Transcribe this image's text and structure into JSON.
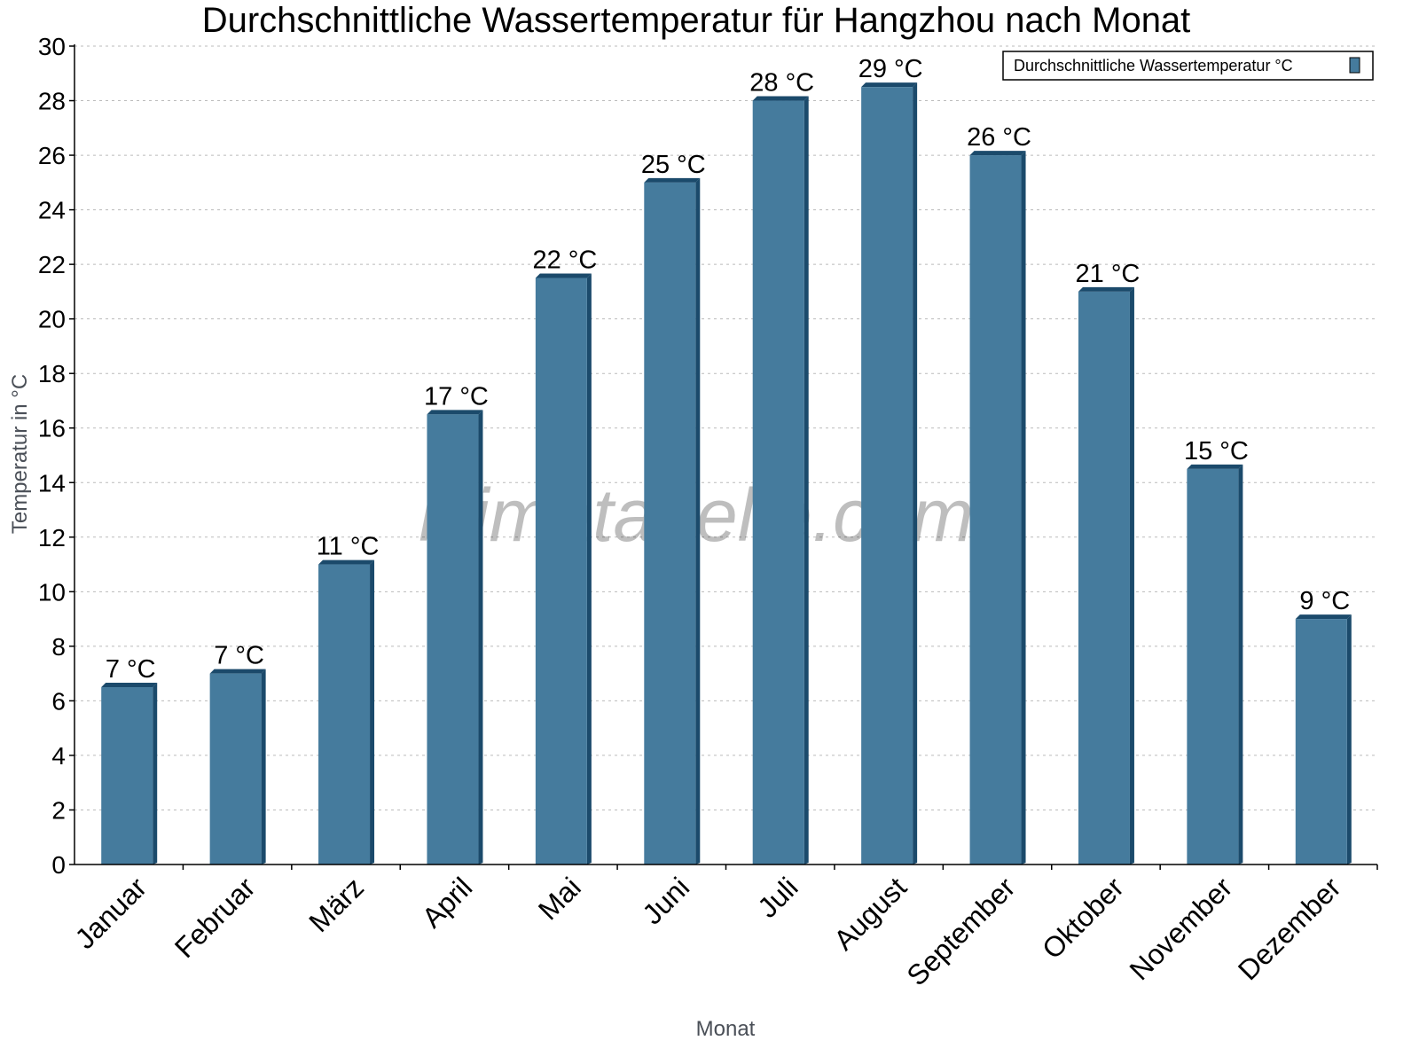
{
  "chart_data": {
    "type": "bar",
    "title": "Durchschnittliche Wassertemperatur für Hangzhou nach Monat",
    "xlabel": "Monat",
    "ylabel": "Temperatur in °C",
    "ylim": [
      0,
      30
    ],
    "yticks": [
      0,
      2,
      4,
      6,
      8,
      10,
      12,
      14,
      16,
      18,
      20,
      22,
      24,
      26,
      28,
      30
    ],
    "grid": true,
    "legend_position": "top-right",
    "categories": [
      "Januar",
      "Februar",
      "März",
      "April",
      "Mai",
      "Juni",
      "Juli",
      "August",
      "September",
      "Oktober",
      "November",
      "Dezember"
    ],
    "series": [
      {
        "name": "Durchschnittliche Wassertemperatur °C",
        "color": "#457b9d",
        "side_color": "#1b4a6b",
        "values": [
          6.5,
          7,
          11,
          16.5,
          21.5,
          25,
          28,
          28.5,
          26,
          21,
          14.5,
          9
        ],
        "labels": [
          "7 °C",
          "7 °C",
          "11 °C",
          "17 °C",
          "22 °C",
          "25 °C",
          "28 °C",
          "29 °C",
          "26 °C",
          "21 °C",
          "15 °C",
          "9 °C"
        ]
      }
    ],
    "watermark": "klimatabelle.com"
  }
}
